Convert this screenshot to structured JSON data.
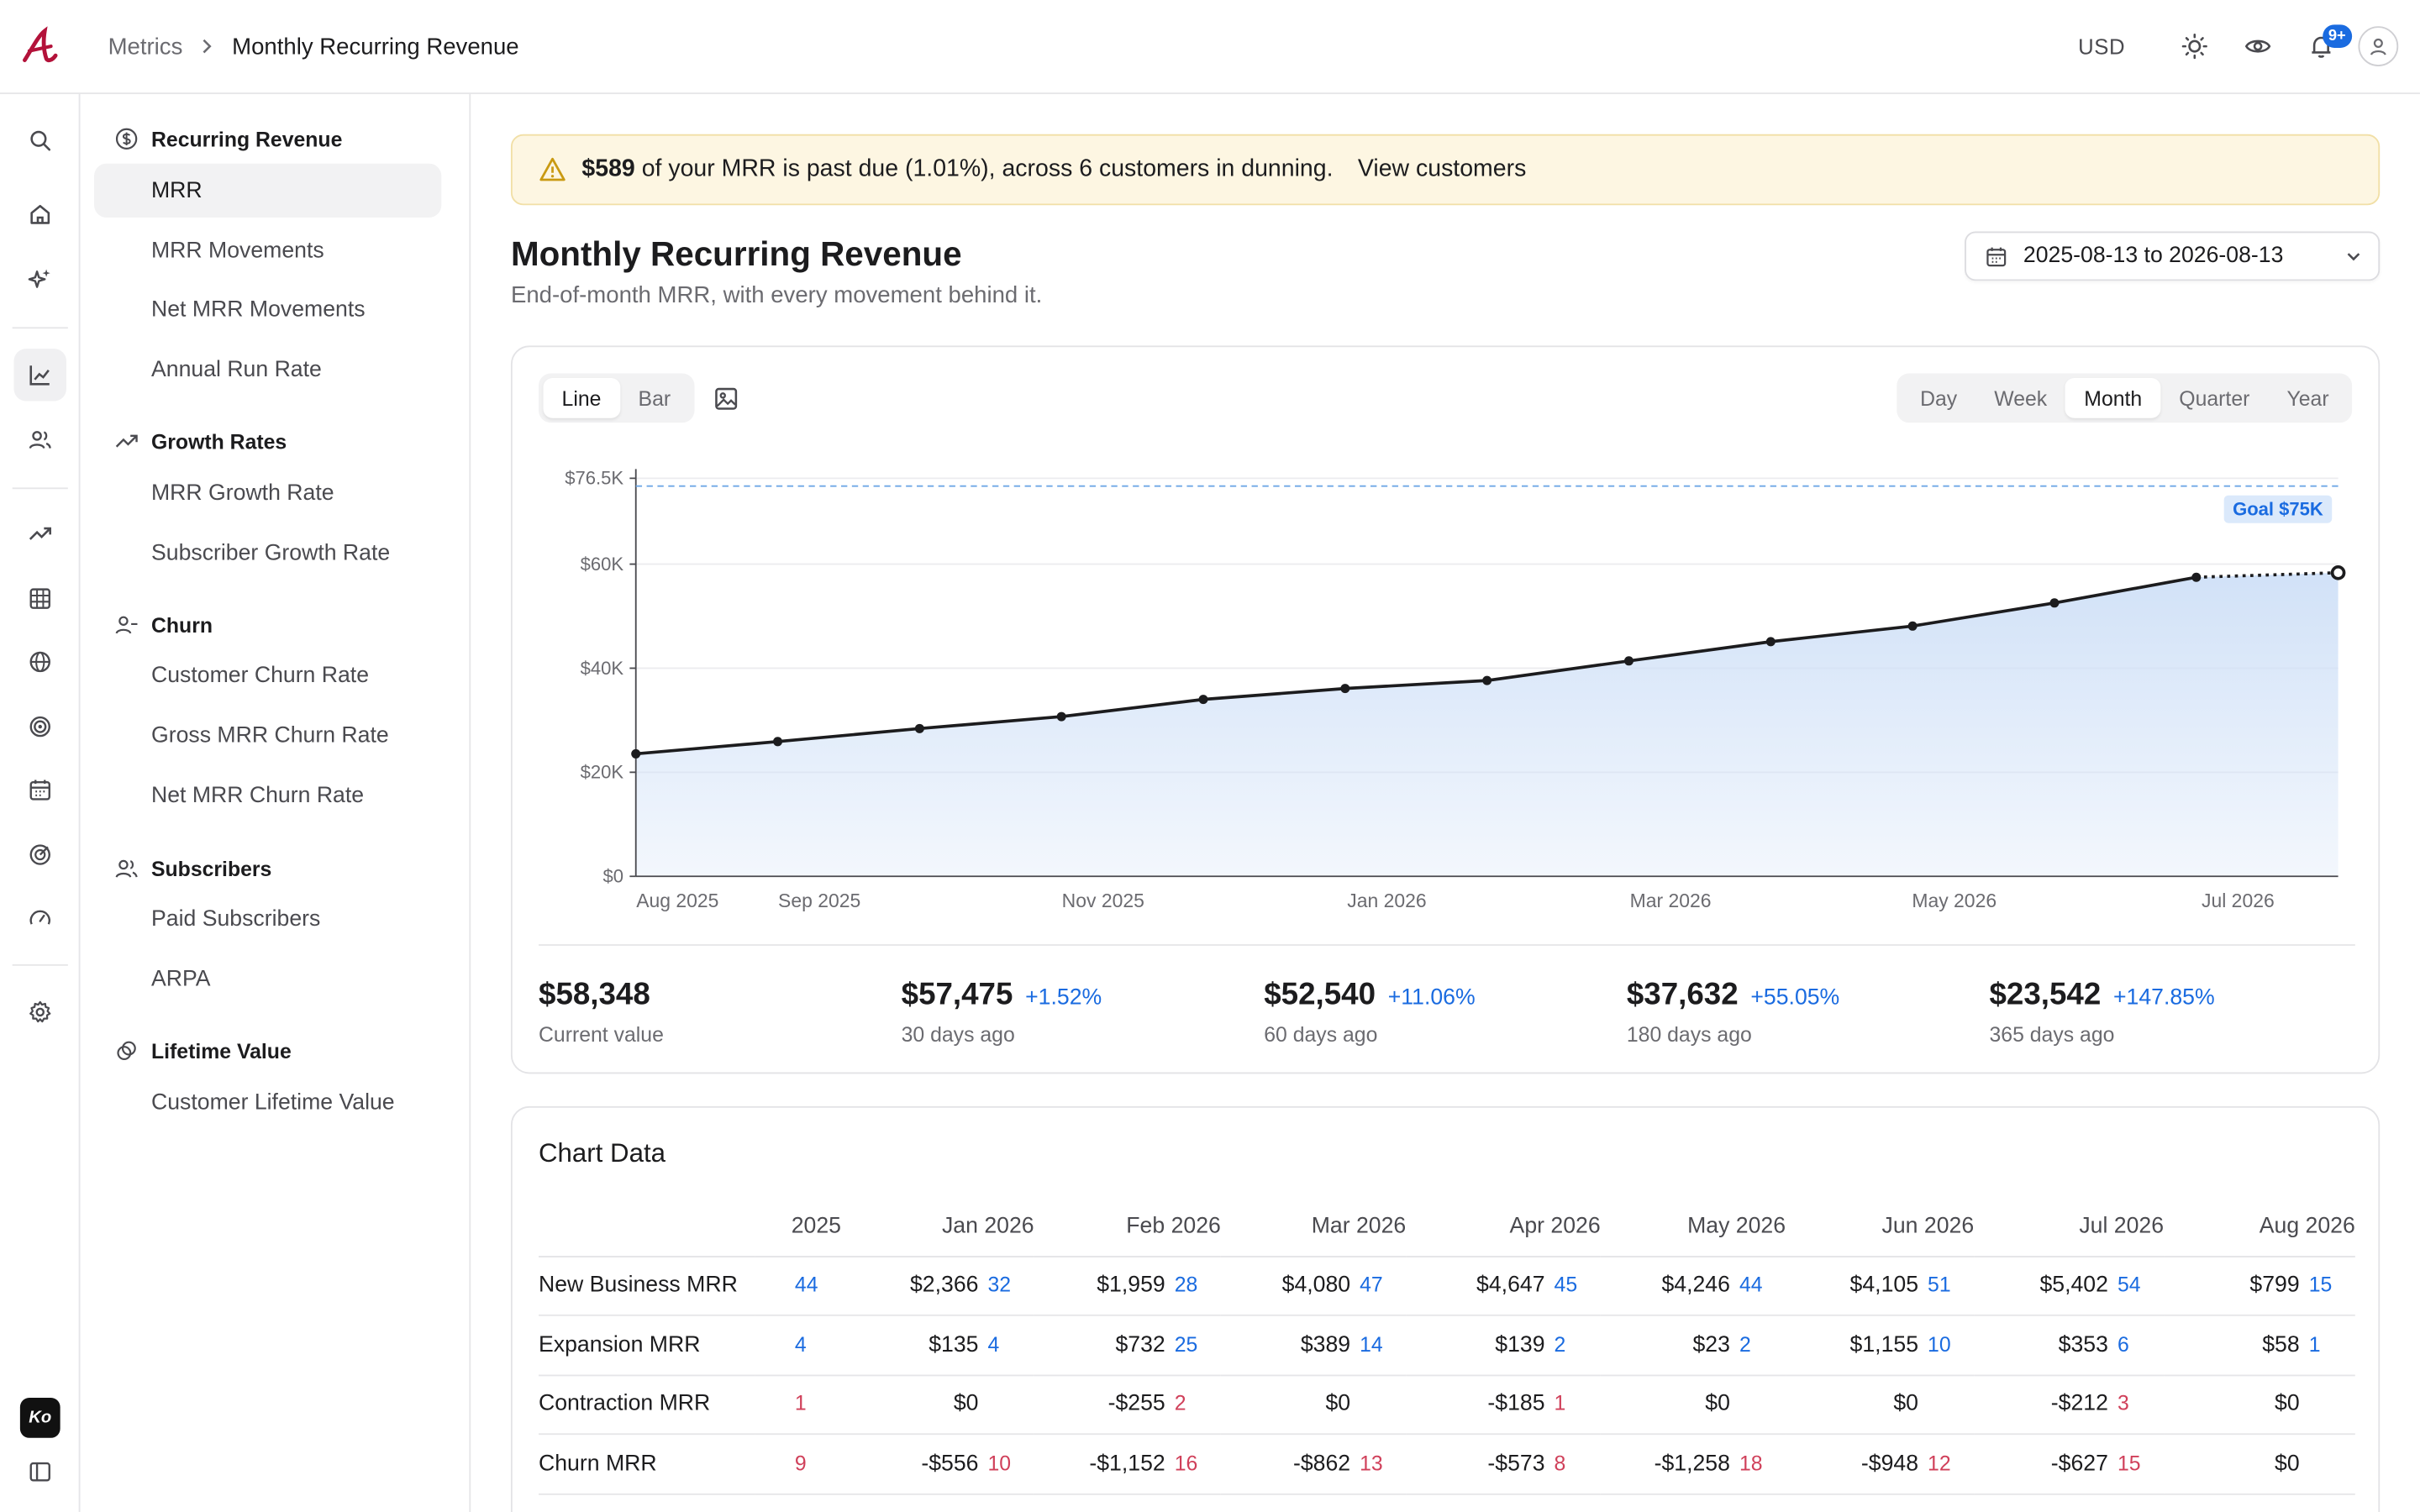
{
  "topbar": {
    "breadcrumb_parent": "Metrics",
    "breadcrumb_current": "Monthly Recurring Revenue",
    "currency": "USD",
    "notifications_badge": "9+"
  },
  "rail": {
    "brand_label": "Ko",
    "icons": [
      "search-icon",
      "home-icon",
      "sparkle-icon",
      "chart-icon",
      "users-icon",
      "trend-icon",
      "grid-icon",
      "globe-icon",
      "target-icon",
      "calendar-icon",
      "radar-icon",
      "gauge-icon",
      "gear-icon",
      "sidebar-toggle-icon"
    ]
  },
  "subnav": {
    "groups": [
      {
        "label": "Recurring Revenue",
        "icon": "dollar-circle-icon",
        "items": [
          "MRR",
          "MRR Movements",
          "Net MRR Movements",
          "Annual Run Rate"
        ]
      },
      {
        "label": "Growth Rates",
        "icon": "trend-up-icon",
        "items": [
          "MRR Growth Rate",
          "Subscriber Growth Rate"
        ]
      },
      {
        "label": "Churn",
        "icon": "user-minus-icon",
        "items": [
          "Customer Churn Rate",
          "Gross MRR Churn Rate",
          "Net MRR Churn Rate"
        ]
      },
      {
        "label": "Subscribers",
        "icon": "users-icon",
        "items": [
          "Paid Subscribers",
          "ARPA"
        ]
      },
      {
        "label": "Lifetime Value",
        "icon": "link-icon",
        "items": [
          "Customer Lifetime Value"
        ]
      }
    ],
    "active_item": "MRR"
  },
  "alert": {
    "amount": "$589",
    "text": "of your MRR is past due (1.01%), across 6 customers in dunning.",
    "link": "View customers",
    "color": "#fdf6e2"
  },
  "header": {
    "title": "Monthly Recurring Revenue",
    "subtitle": "End-of-month MRR, with every movement behind it.",
    "date_range": "2025-08-13 to 2026-08-13"
  },
  "chart_controls": {
    "types": [
      "Line",
      "Bar"
    ],
    "active_type": "Line",
    "periods": [
      "Day",
      "Week",
      "Month",
      "Quarter",
      "Year"
    ],
    "active_period": "Month"
  },
  "chart_data": {
    "type": "area",
    "x": [
      "Aug 2025",
      "Sep 2025",
      "Oct 2025",
      "Nov 2025",
      "Dec 2025",
      "Jan 2026",
      "Feb 2026",
      "Mar 2026",
      "Apr 2026",
      "May 2026",
      "Jun 2026",
      "Jul 2026",
      "Aug 2026"
    ],
    "x_tick_labels": [
      "Aug 2025",
      "Sep 2025",
      "Nov 2025",
      "Jan 2026",
      "Mar 2026",
      "May 2026",
      "Jul 2026"
    ],
    "values": [
      23542,
      25900,
      28400,
      30700,
      34000,
      36100,
      37632,
      41400,
      45100,
      48100,
      52540,
      57475,
      58348
    ],
    "projected_from_index": 11,
    "y_ticks": [
      "$0",
      "$20K",
      "$40K",
      "$60K",
      "$76.5K"
    ],
    "y_tick_values": [
      0,
      20000,
      40000,
      60000,
      76500
    ],
    "ylim": [
      0,
      76500
    ],
    "goal": {
      "value": 75000,
      "label": "Goal $75K"
    },
    "line_color": "#1c1c1e",
    "fill_color": "#cfe0f7",
    "grid": true
  },
  "stats": [
    {
      "value": "$58,348",
      "delta": "",
      "label": "Current value"
    },
    {
      "value": "$57,475",
      "delta": "+1.52%",
      "label": "30 days ago"
    },
    {
      "value": "$52,540",
      "delta": "+11.06%",
      "label": "60 days ago"
    },
    {
      "value": "$37,632",
      "delta": "+55.05%",
      "label": "180 days ago"
    },
    {
      "value": "$23,542",
      "delta": "+147.85%",
      "label": "365 days ago"
    }
  ],
  "table": {
    "title": "Chart Data",
    "columns": [
      "2025",
      "Jan 2026",
      "Feb 2026",
      "Mar 2026",
      "Apr 2026",
      "May 2026",
      "Jun 2026",
      "Jul 2026",
      "Aug 2026"
    ],
    "rows": [
      {
        "name": "New Business MRR",
        "cells": [
          [
            "",
            "44",
            "pos"
          ],
          [
            "$2,366",
            "32",
            "pos"
          ],
          [
            "$1,959",
            "28",
            "pos"
          ],
          [
            "$4,080",
            "47",
            "pos"
          ],
          [
            "$4,647",
            "45",
            "pos"
          ],
          [
            "$4,246",
            "44",
            "pos"
          ],
          [
            "$4,105",
            "51",
            "pos"
          ],
          [
            "$5,402",
            "54",
            "pos"
          ],
          [
            "$799",
            "15",
            "pos"
          ]
        ]
      },
      {
        "name": "Expansion MRR",
        "cells": [
          [
            "",
            "4",
            "pos"
          ],
          [
            "$135",
            "4",
            "pos"
          ],
          [
            "$732",
            "25",
            "pos"
          ],
          [
            "$389",
            "14",
            "pos"
          ],
          [
            "$139",
            "2",
            "pos"
          ],
          [
            "$23",
            "2",
            "pos"
          ],
          [
            "$1,155",
            "10",
            "pos"
          ],
          [
            "$353",
            "6",
            "pos"
          ],
          [
            "$58",
            "1",
            "pos"
          ]
        ]
      },
      {
        "name": "Contraction MRR",
        "cells": [
          [
            "",
            "1",
            "neg"
          ],
          [
            "$0",
            "",
            ""
          ],
          [
            "-$255",
            "2",
            "neg"
          ],
          [
            "$0",
            "",
            ""
          ],
          [
            "-$185",
            "1",
            "neg"
          ],
          [
            "$0",
            "",
            ""
          ],
          [
            "$0",
            "",
            ""
          ],
          [
            "-$212",
            "3",
            "neg"
          ],
          [
            "$0",
            "",
            ""
          ]
        ]
      },
      {
        "name": "Churn MRR",
        "cells": [
          [
            "",
            "9",
            "neg"
          ],
          [
            "-$556",
            "10",
            "neg"
          ],
          [
            "-$1,152",
            "16",
            "neg"
          ],
          [
            "-$862",
            "13",
            "neg"
          ],
          [
            "-$573",
            "8",
            "neg"
          ],
          [
            "-$1,258",
            "18",
            "neg"
          ],
          [
            "-$948",
            "12",
            "neg"
          ],
          [
            "-$627",
            "15",
            "neg"
          ],
          [
            "$0",
            "",
            ""
          ]
        ]
      }
    ]
  }
}
